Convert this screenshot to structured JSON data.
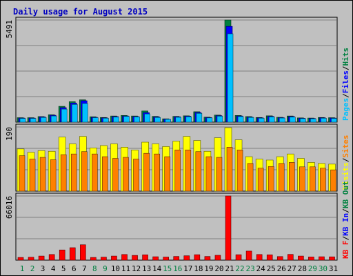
{
  "title": "Daily usage for August 2015",
  "colors": {
    "background": "#c0c0c0",
    "panel": "#c0c0c0",
    "grid": "#808080",
    "title": "#0000c0",
    "pages": "#00c0ff",
    "files": "#0000ff",
    "hits": "#008040",
    "visits": "#ffff00",
    "sites": "#ff8000",
    "kbin": "#0000ff",
    "kbout": "#008040",
    "kbf": "#ff0000",
    "weekday_label": "#008040",
    "day_label": "#000000"
  },
  "chart_data": [
    {
      "type": "bar",
      "name": "hits-files-pages",
      "ymax_label": "5491",
      "ylim": [
        0,
        5491
      ],
      "grid": true,
      "legend": "right, vertical",
      "legend_items": [
        {
          "label": "Pages",
          "color_key": "pages"
        },
        {
          "label": "/",
          "color_key": "day_label"
        },
        {
          "label": "Files",
          "color_key": "files"
        },
        {
          "label": "/",
          "color_key": "day_label"
        },
        {
          "label": "Hits",
          "color_key": "hits"
        }
      ],
      "categories": [
        "1",
        "2",
        "3",
        "4",
        "5",
        "6",
        "7",
        "8",
        "9",
        "10",
        "11",
        "12",
        "13",
        "14",
        "15",
        "16",
        "17",
        "18",
        "19",
        "20",
        "21",
        "22",
        "23",
        "24",
        "25",
        "26",
        "27",
        "28",
        "29",
        "30",
        "31"
      ],
      "series": [
        {
          "name": "Hits",
          "color_key": "hits",
          "values": [
            240,
            240,
            300,
            400,
            850,
            1100,
            1200,
            290,
            250,
            330,
            360,
            330,
            600,
            310,
            180,
            310,
            340,
            560,
            270,
            380,
            5491,
            360,
            300,
            250,
            340,
            260,
            330,
            230,
            220,
            250,
            240
          ]
        },
        {
          "name": "Files",
          "color_key": "files",
          "values": [
            220,
            220,
            280,
            370,
            780,
            1030,
            1150,
            260,
            230,
            300,
            330,
            300,
            510,
            280,
            160,
            290,
            320,
            520,
            250,
            350,
            5150,
            330,
            270,
            230,
            310,
            240,
            300,
            210,
            200,
            230,
            220
          ]
        },
        {
          "name": "Pages",
          "color_key": "pages",
          "values": [
            200,
            200,
            250,
            330,
            700,
            950,
            1000,
            240,
            210,
            270,
            310,
            280,
            440,
            250,
            150,
            260,
            290,
            470,
            230,
            320,
            4750,
            300,
            250,
            210,
            280,
            220,
            270,
            190,
            180,
            210,
            200
          ]
        }
      ]
    },
    {
      "type": "bar",
      "name": "visits-sites",
      "ymax_label": "190",
      "ylim": [
        0,
        190
      ],
      "grid": true,
      "legend": "right, vertical",
      "legend_items": [
        {
          "label": "Visits",
          "color_key": "visits"
        },
        {
          "label": "/",
          "color_key": "day_label"
        },
        {
          "label": "Sites",
          "color_key": "sites"
        }
      ],
      "categories": [
        "1",
        "2",
        "3",
        "4",
        "5",
        "6",
        "7",
        "8",
        "9",
        "10",
        "11",
        "12",
        "13",
        "14",
        "15",
        "16",
        "17",
        "18",
        "19",
        "20",
        "21",
        "22",
        "23",
        "24",
        "25",
        "26",
        "27",
        "28",
        "29",
        "30",
        "31"
      ],
      "series": [
        {
          "name": "Visits",
          "color_key": "visits",
          "values": [
            125,
            115,
            120,
            118,
            160,
            140,
            162,
            128,
            135,
            140,
            130,
            122,
            145,
            140,
            132,
            148,
            162,
            150,
            118,
            158,
            188,
            152,
            102,
            95,
            92,
            102,
            110,
            97,
            85,
            82,
            80
          ]
        },
        {
          "name": "Sites",
          "color_key": "sites",
          "values": [
            105,
            95,
            100,
            93,
            108,
            110,
            117,
            110,
            102,
            97,
            100,
            95,
            112,
            110,
            102,
            122,
            122,
            117,
            102,
            100,
            130,
            122,
            82,
            68,
            73,
            82,
            85,
            72,
            72,
            68,
            63
          ]
        }
      ]
    },
    {
      "type": "bar",
      "name": "kbytes",
      "ymax_label": "66016",
      "ylim": [
        0,
        66016
      ],
      "grid": true,
      "legend": "right, vertical",
      "legend_items": [
        {
          "label": "KB F",
          "color_key": "kbf"
        },
        {
          "label": "/",
          "color_key": "day_label"
        },
        {
          "label": "KB In",
          "color_key": "kbin"
        },
        {
          "label": "/",
          "color_key": "day_label"
        },
        {
          "label": "KB Out",
          "color_key": "kbout"
        }
      ],
      "categories": [
        "1",
        "2",
        "3",
        "4",
        "5",
        "6",
        "7",
        "8",
        "9",
        "10",
        "11",
        "12",
        "13",
        "14",
        "15",
        "16",
        "17",
        "18",
        "19",
        "20",
        "21",
        "22",
        "23",
        "24",
        "25",
        "26",
        "27",
        "28",
        "29",
        "30",
        "31"
      ],
      "series": [
        {
          "name": "KB F",
          "color_key": "kbf",
          "values": [
            2800,
            3000,
            4200,
            5800,
            10500,
            12800,
            15800,
            2800,
            3100,
            4200,
            5800,
            4900,
            5500,
            3500,
            3200,
            3800,
            4500,
            5600,
            3800,
            5000,
            66016,
            5600,
            9300,
            5800,
            5500,
            3700,
            5900,
            4200,
            3300,
            3500,
            3400
          ]
        }
      ]
    }
  ],
  "x_labels": [
    {
      "t": "1",
      "w": true
    },
    {
      "t": "2",
      "w": true
    },
    {
      "t": "3",
      "w": false
    },
    {
      "t": "4",
      "w": false
    },
    {
      "t": "5",
      "w": false
    },
    {
      "t": "6",
      "w": false
    },
    {
      "t": "7",
      "w": false
    },
    {
      "t": "8",
      "w": true
    },
    {
      "t": "9",
      "w": true
    },
    {
      "t": "10",
      "w": false
    },
    {
      "t": "11",
      "w": false
    },
    {
      "t": "12",
      "w": false
    },
    {
      "t": "13",
      "w": false
    },
    {
      "t": "14",
      "w": false
    },
    {
      "t": "15",
      "w": true
    },
    {
      "t": "16",
      "w": true
    },
    {
      "t": "17",
      "w": false
    },
    {
      "t": "18",
      "w": false
    },
    {
      "t": "19",
      "w": false
    },
    {
      "t": "20",
      "w": false
    },
    {
      "t": "21",
      "w": false
    },
    {
      "t": "22",
      "w": true
    },
    {
      "t": "23",
      "w": true
    },
    {
      "t": "24",
      "w": false
    },
    {
      "t": "25",
      "w": false
    },
    {
      "t": "26",
      "w": false
    },
    {
      "t": "27",
      "w": false
    },
    {
      "t": "28",
      "w": false
    },
    {
      "t": "29",
      "w": true
    },
    {
      "t": "30",
      "w": true
    },
    {
      "t": "31",
      "w": false
    }
  ]
}
